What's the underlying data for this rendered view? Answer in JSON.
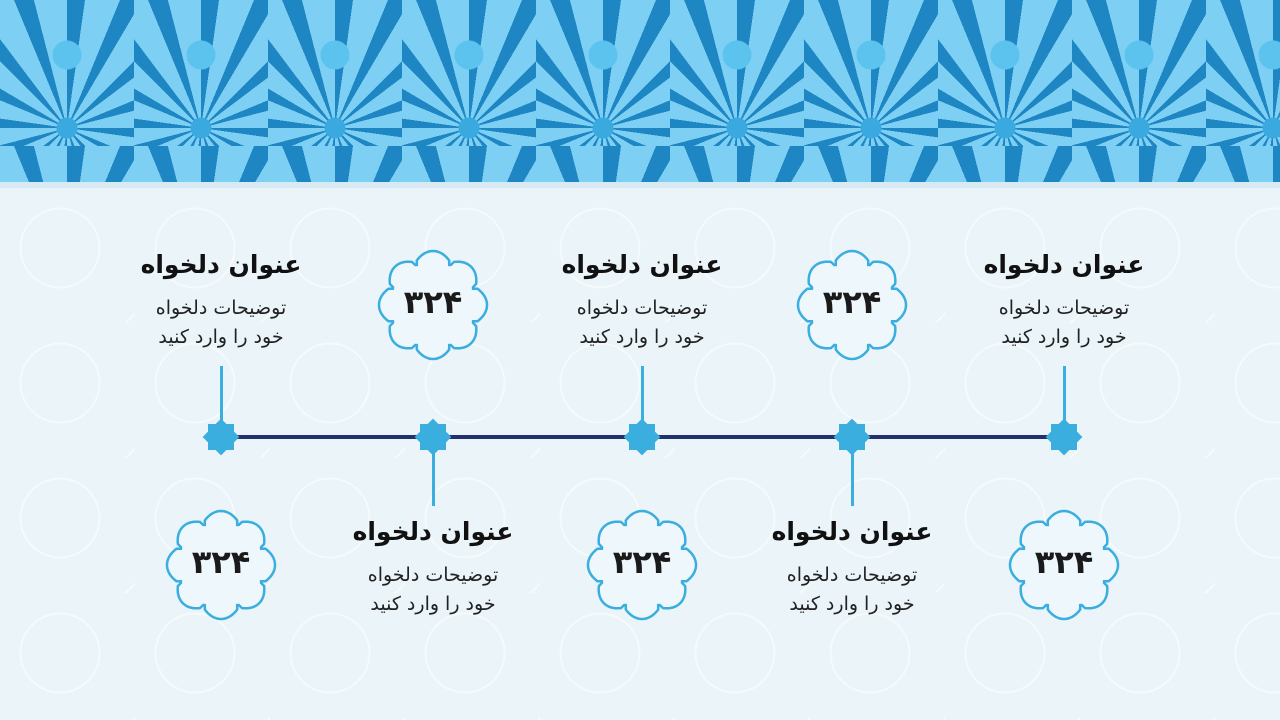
{
  "colors": {
    "accent": "#3aaede",
    "timeline": "#22306b",
    "banner": "#4db6e8"
  },
  "items": [
    {
      "title": "عنوان دلخواه",
      "desc1": "توضیحات دلخواه",
      "desc2": "خود را وارد کنید",
      "number": "۳۲۴"
    },
    {
      "title": "عنوان دلخواه",
      "desc1": "توضیحات دلخواه",
      "desc2": "خود را وارد کنید",
      "number": "۳۲۴"
    },
    {
      "title": "عنوان دلخواه",
      "desc1": "توضیحات دلخواه",
      "desc2": "خود را وارد کنید",
      "number": "۳۲۴"
    },
    {
      "title": "عنوان دلخواه",
      "desc1": "توضیحات دلخواه",
      "desc2": "خود را وارد کنید",
      "number": "۳۲۴"
    },
    {
      "title": "عنوان دلخواه",
      "desc1": "توضیحات دلخواه",
      "desc2": "خود را وارد کنید",
      "number": "۳۲۴"
    }
  ]
}
